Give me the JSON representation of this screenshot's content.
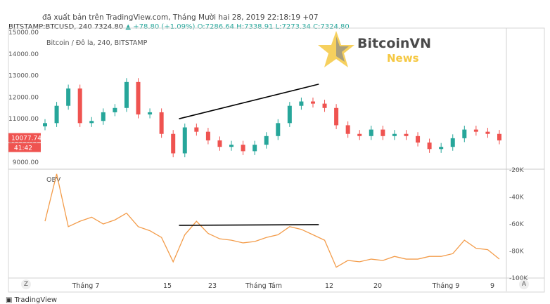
{
  "header": {
    "source_line": "đã xuất bản trên TradingView.com, Tháng Mười hai 28, 2019 22:18:19 +07",
    "symbol_line_prefix": "BITSTAMP:BTCUSD, 240 7324.80",
    "change": "▲ +78.80 (+1.09%)",
    "ohlc": "O:7286.64 H:7338.91 L:7273.34 C:7324.80"
  },
  "logo": {
    "name": "BitcoinVN",
    "sub": "News"
  },
  "footer": {
    "brand": "TradingView"
  },
  "corners": {
    "left": "Z",
    "right": "A"
  },
  "colors": {
    "up": "#26a69a",
    "down": "#ef5350",
    "obv": "#f39c4a",
    "trendline": "#000000"
  },
  "chart_data": [
    {
      "type": "candlestick",
      "title": "Bitcoin / Đô la, 240, BITSTAMP",
      "price_tag": "10077.74",
      "time_tag": "41:42",
      "ylim": [
        8700,
        15000
      ],
      "y_ticks": [
        "9000.00",
        "10000.00",
        "11000.00",
        "12000.00",
        "13000.00",
        "14000.00",
        "15000.00"
      ],
      "x_ticks": [
        "Tháng 7",
        "15",
        "23",
        "Tháng Tám",
        "12",
        "20",
        "Tháng 9",
        "9"
      ],
      "x": [
        "Jun 25",
        "Jun 27",
        "Jun 29",
        "Jul 1",
        "Jul 3",
        "Jul 5",
        "Jul 7",
        "Jul 9",
        "Jul 11",
        "Jul 13",
        "Jul 15",
        "Jul 17",
        "Jul 19",
        "Jul 21",
        "Jul 23",
        "Jul 25",
        "Jul 27",
        "Jul 29",
        "Jul 31",
        "Aug 2",
        "Aug 4",
        "Aug 6",
        "Aug 8",
        "Aug 10",
        "Aug 12",
        "Aug 14",
        "Aug 16",
        "Aug 18",
        "Aug 20",
        "Aug 22",
        "Aug 24",
        "Aug 26",
        "Aug 28",
        "Aug 30",
        "Sep 1",
        "Sep 3",
        "Sep 5",
        "Sep 7",
        "Sep 9",
        "Sep 11"
      ],
      "close": [
        10800,
        11600,
        12400,
        10800,
        10900,
        11300,
        11500,
        12700,
        11200,
        11300,
        10300,
        9400,
        10600,
        10400,
        10000,
        9700,
        9800,
        9500,
        9800,
        10200,
        10800,
        11600,
        11800,
        11700,
        11500,
        10700,
        10300,
        10200,
        10500,
        10200,
        10300,
        10200,
        9900,
        9600,
        9700,
        10100,
        10500,
        10400,
        10300,
        10000
      ],
      "trendline": {
        "from": [
          "Jul 18",
          11000
        ],
        "to": [
          "Aug 11",
          12600
        ]
      }
    },
    {
      "type": "line",
      "title": "OBV",
      "ylim": [
        -100000,
        -20000
      ],
      "y_ticks": [
        "-20K",
        "-40K",
        "-60K",
        "-80K",
        "-100K"
      ],
      "series": [
        {
          "values": [
            -58000,
            -23000,
            -62000,
            -58000,
            -55000,
            -60000,
            -57000,
            -52000,
            -62000,
            -65000,
            -70000,
            -88000,
            -68000,
            -58000,
            -67000,
            -71000,
            -72000,
            -74000,
            -73000,
            -70000,
            -68000,
            -62000,
            -64000,
            -68000,
            -72000,
            -92000,
            -87000,
            -88000,
            -86000,
            -87000,
            -84000,
            -86000,
            -86000,
            -84000,
            -84000,
            -82000,
            -72000,
            -78000,
            -79000,
            -86000
          ]
        }
      ],
      "trendline": {
        "from": [
          "Jul 18",
          -61000
        ],
        "to": [
          "Aug 11",
          -60500
        ]
      }
    }
  ]
}
